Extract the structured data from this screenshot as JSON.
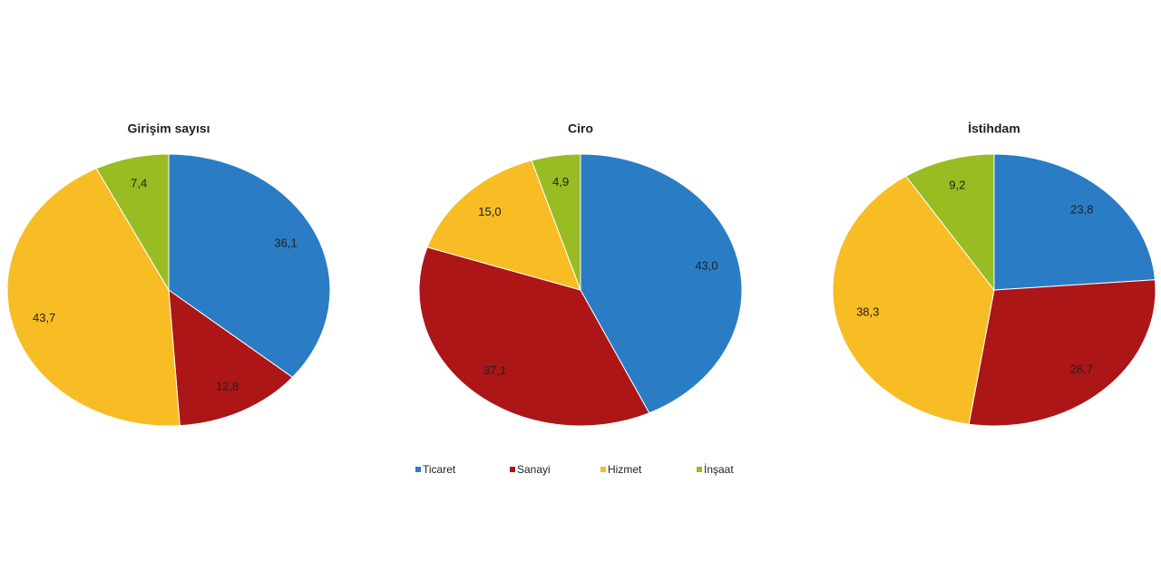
{
  "chart_data": [
    {
      "type": "pie",
      "title": "Girişim sayısı",
      "categories": [
        "Ticaret",
        "Sanayi",
        "Hizmet",
        "İnşaat"
      ],
      "values": [
        36.1,
        12.8,
        43.7,
        7.4
      ],
      "value_labels": [
        "36,1",
        "12,8",
        "43,7",
        "7,4"
      ],
      "colors": [
        "#2a7cc4",
        "#ac1616",
        "#f8bc24",
        "#98bc22"
      ],
      "legend": "bottom"
    },
    {
      "type": "pie",
      "title": "Ciro",
      "categories": [
        "Ticaret",
        "Sanayi",
        "Hizmet",
        "İnşaat"
      ],
      "values": [
        43.0,
        37.1,
        15.0,
        4.9
      ],
      "value_labels": [
        "43,0",
        "37,1",
        "15,0",
        "4,9"
      ],
      "colors": [
        "#2a7cc4",
        "#ac1616",
        "#f8bc24",
        "#98bc22"
      ]
    },
    {
      "type": "pie",
      "title": "İstihdam",
      "categories": [
        "Ticaret",
        "Sanayi",
        "Hizmet",
        "İnşaat"
      ],
      "values": [
        23.8,
        28.7,
        38.3,
        9.2
      ],
      "value_labels": [
        "23,8",
        "28,7",
        "38,3",
        "9,2"
      ],
      "colors": [
        "#2a7cc4",
        "#ac1616",
        "#f8bc24",
        "#98bc22"
      ]
    }
  ]
}
